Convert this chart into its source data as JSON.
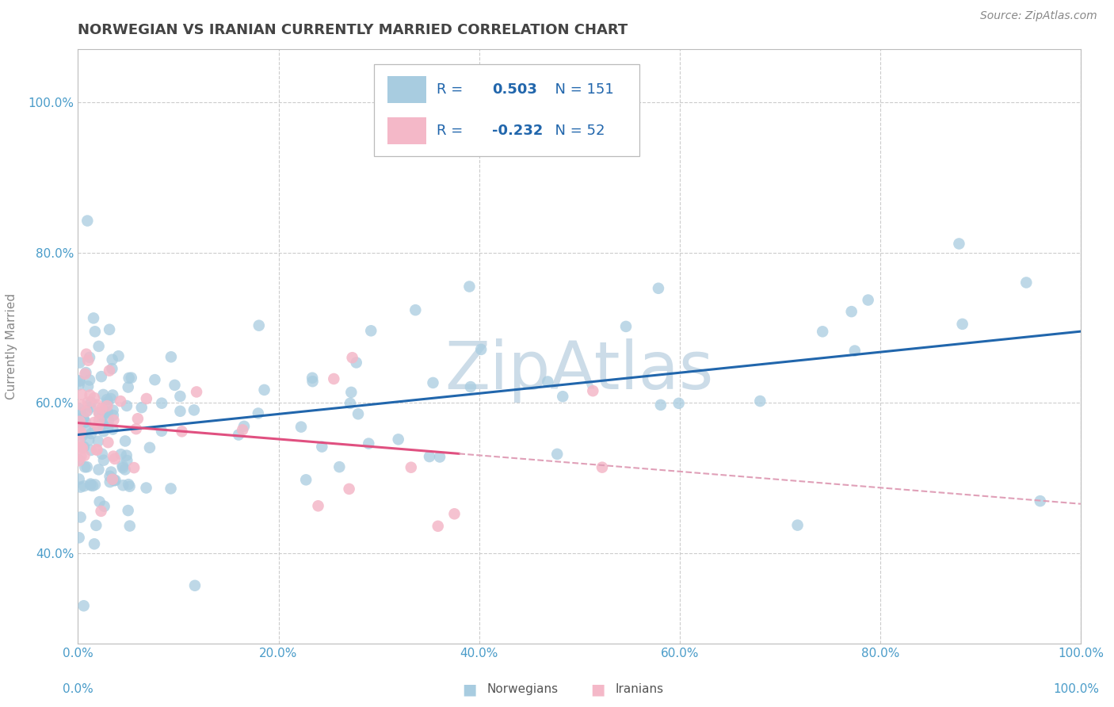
{
  "title": "NORWEGIAN VS IRANIAN CURRENTLY MARRIED CORRELATION CHART",
  "source": "Source: ZipAtlas.com",
  "ylabel": "Currently Married",
  "legend_labels": [
    "Norwegians",
    "Iranians"
  ],
  "norwegian_R": 0.503,
  "norwegian_N": 151,
  "iranian_R": -0.232,
  "iranian_N": 52,
  "norwegian_color": "#a8cce0",
  "iranian_color": "#f4b8c8",
  "norwegian_line_color": "#2166ac",
  "iranian_line_solid_color": "#e05080",
  "iranian_line_dash_color": "#e0a0b8",
  "watermark": "ZipAtlas",
  "watermark_color": "#ccdce8",
  "background_color": "#ffffff",
  "grid_color": "#cccccc",
  "xlim": [
    0.0,
    1.0
  ],
  "ylim": [
    0.28,
    1.07
  ],
  "title_color": "#444444",
  "source_color": "#888888",
  "legend_text_color": "#2166ac",
  "tick_color": "#4a9cc9",
  "ylabel_color": "#888888"
}
